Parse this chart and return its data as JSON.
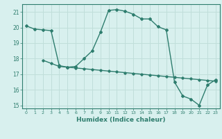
{
  "xlabel": "Humidex (Indice chaleur)",
  "ylabel": "",
  "bg_color": "#d8f0ee",
  "grid_color": "#c0deda",
  "line_color": "#2e7d6e",
  "xlim": [
    -0.5,
    23.5
  ],
  "ylim": [
    14.8,
    21.5
  ],
  "yticks": [
    15,
    16,
    17,
    18,
    19,
    20,
    21
  ],
  "xticks": [
    0,
    1,
    2,
    3,
    4,
    5,
    6,
    7,
    8,
    9,
    10,
    11,
    12,
    13,
    14,
    15,
    16,
    17,
    18,
    19,
    20,
    21,
    22,
    23
  ],
  "curve1_x": [
    0,
    1,
    2,
    3,
    4,
    5,
    6,
    7,
    8,
    9,
    10,
    11,
    12,
    13,
    14,
    15,
    16,
    17,
    18,
    19,
    20,
    21,
    22,
    23
  ],
  "curve1_y": [
    20.1,
    19.9,
    19.85,
    19.8,
    17.55,
    17.45,
    17.5,
    18.0,
    18.5,
    19.7,
    21.1,
    21.15,
    21.05,
    20.85,
    20.55,
    20.55,
    20.05,
    19.85,
    16.5,
    15.6,
    15.4,
    15.0,
    16.3,
    16.65
  ],
  "curve2_x": [
    2,
    3,
    4,
    5,
    6,
    7,
    8,
    9,
    10,
    11,
    12,
    13,
    14,
    15,
    16,
    17,
    18,
    19,
    20,
    21,
    22,
    23
  ],
  "curve2_y": [
    17.9,
    17.7,
    17.5,
    17.45,
    17.4,
    17.35,
    17.3,
    17.25,
    17.2,
    17.15,
    17.1,
    17.05,
    17.0,
    16.95,
    16.9,
    16.85,
    16.8,
    16.75,
    16.7,
    16.65,
    16.6,
    16.55
  ]
}
